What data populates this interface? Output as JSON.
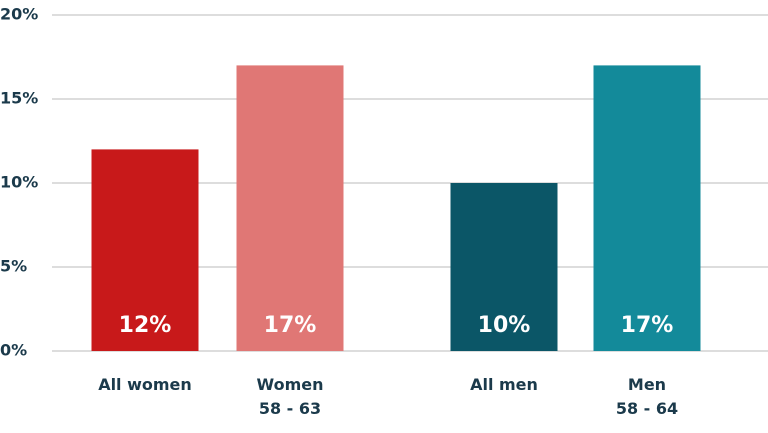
{
  "chart_data": {
    "type": "bar",
    "categories": [
      "All women",
      "Women\n58 - 63",
      "All men",
      "Men\n58 - 64"
    ],
    "values": [
      12,
      17,
      10,
      17
    ],
    "value_labels": [
      "12%",
      "17%",
      "10%",
      "17%"
    ],
    "colors": [
      "#c8191a",
      "#e07775",
      "#0b5667",
      "#138a9a"
    ],
    "ylim": [
      0,
      20
    ],
    "yticks": [
      {
        "value": 0,
        "label": "0%"
      },
      {
        "value": 5,
        "label": "5%"
      },
      {
        "value": 10,
        "label": "10%"
      },
      {
        "value": 15,
        "label": "15%"
      },
      {
        "value": 20,
        "label": "20%"
      }
    ],
    "grid": true
  }
}
